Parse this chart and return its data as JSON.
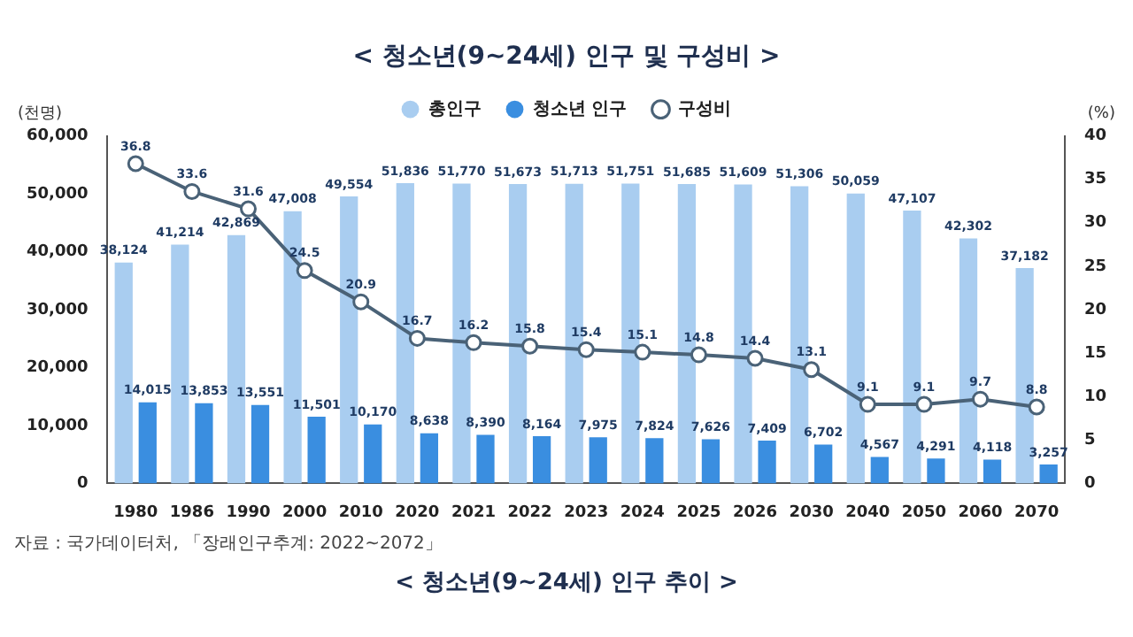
{
  "chart_data": {
    "type": "bar",
    "title": "< 청소년(9~24세) 인구 및 구성비 >",
    "ylabel": "(천명)",
    "y2label": "(%)",
    "categories": [
      "1980",
      "1986",
      "1990",
      "2000",
      "2010",
      "2020",
      "2021",
      "2022",
      "2023",
      "2024",
      "2025",
      "2026",
      "2030",
      "2040",
      "2050",
      "2060",
      "2070"
    ],
    "series": [
      {
        "name": "총인구",
        "color": "#a9cdf0",
        "values": [
          38124,
          41214,
          42869,
          47008,
          49554,
          51836,
          51770,
          51673,
          51713,
          51751,
          51685,
          51609,
          51306,
          50059,
          47107,
          42302,
          37182
        ],
        "value_labels": [
          "38,124",
          "41,214",
          "42,869",
          "47,008",
          "49,554",
          "51,836",
          "51,770",
          "51,673",
          "51,713",
          "51,751",
          "51,685",
          "51,609",
          "51,306",
          "50,059",
          "47,107",
          "42,302",
          "37,182"
        ]
      },
      {
        "name": "청소년 인구",
        "color": "#3a8ee0",
        "values": [
          14015,
          13853,
          13551,
          11501,
          10170,
          8638,
          8390,
          8164,
          7975,
          7824,
          7626,
          7409,
          6702,
          4567,
          4291,
          4118,
          3257
        ],
        "value_labels": [
          "14,015",
          "13,853",
          "13,551",
          "11,501",
          "10,170",
          "8,638",
          "8,390",
          "8,164",
          "7,975",
          "7,824",
          "7,626",
          "7,409",
          "6,702",
          "4,567",
          "4,291",
          "4,118",
          "3,257"
        ]
      },
      {
        "name": "구성비",
        "type": "line",
        "axis": "y2",
        "color": "#4a6277",
        "values": [
          36.8,
          33.6,
          31.6,
          24.5,
          20.9,
          16.7,
          16.2,
          15.8,
          15.4,
          15.1,
          14.8,
          14.4,
          13.1,
          9.1,
          9.1,
          9.7,
          8.8
        ],
        "value_labels": [
          "36.8",
          "33.6",
          "31.6",
          "24.5",
          "20.9",
          "16.7",
          "16.2",
          "15.8",
          "15.4",
          "15.1",
          "14.8",
          "14.4",
          "13.1",
          "9.1",
          "9.1",
          "9.7",
          "8.8"
        ]
      }
    ],
    "ylim": [
      0,
      60000
    ],
    "yticks": [
      0,
      {
        "value": 10000,
        "label": "10,000"
      },
      {
        "value": 20000,
        "label": "20,000"
      },
      {
        "value": 30000,
        "label": "30,000"
      },
      {
        "value": 40000,
        "label": "40,000"
      },
      {
        "value": 50000,
        "label": "50,000"
      },
      {
        "value": 60000,
        "label": "60,000"
      }
    ],
    "y2lim": [
      0,
      40
    ],
    "y2ticks": [
      0,
      5,
      10,
      15,
      20,
      25,
      30,
      35,
      40
    ],
    "legend": "top",
    "marker": "circle",
    "line_style": "solid",
    "grid": false,
    "annotations": [
      "자료 : 국가데이터처, 「장래인구추계: 2022~2072」",
      "< 청소년(9~24세) 인구 추이 >"
    ]
  }
}
